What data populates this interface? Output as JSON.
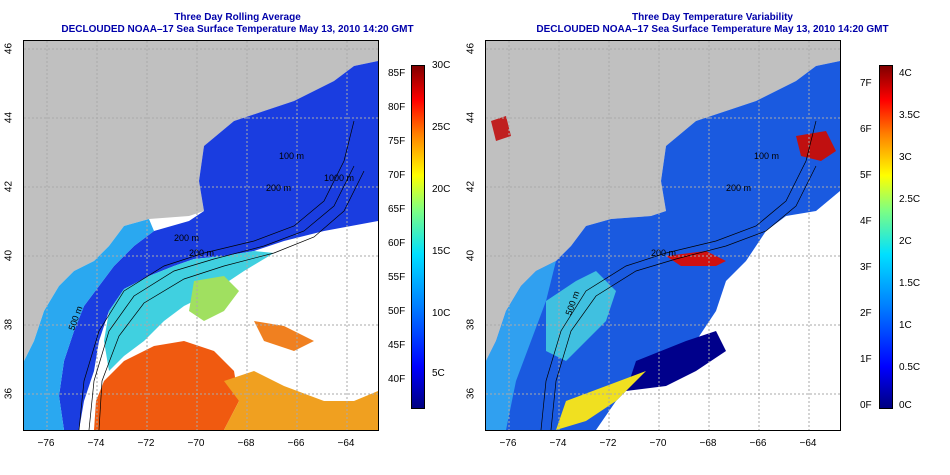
{
  "left_panel": {
    "title": "Three Day Rolling Average",
    "subtitle": "DECLOUDED NOAA–17 Sea Surface Temperature May 13, 2010 14:20 GMT",
    "contour_labels": [
      "100 m",
      "200 m",
      "1000 m",
      "200 m",
      "500 m",
      "200 m"
    ],
    "colorbar_f": [
      "85F",
      "80F",
      "75F",
      "70F",
      "65F",
      "60F",
      "55F",
      "50F",
      "45F",
      "40F"
    ],
    "colorbar_c": [
      "30C",
      "25C",
      "20C",
      "15C",
      "10C",
      "5C"
    ],
    "colors": {
      "cold": "#1030d0",
      "mid": "#30c0f0",
      "warm": "#f05a10",
      "hot": "#ffa020",
      "land": "#c0c0c0"
    }
  },
  "right_panel": {
    "title": "Three Day Temperature Variability",
    "subtitle": "DECLOUDED NOAA–17 Sea Surface Temperature May 13, 2010 14:20 GMT",
    "contour_labels": [
      "100 m",
      "200 m",
      "200 m",
      "500 m"
    ],
    "colorbar_f": [
      "7F",
      "6F",
      "5F",
      "4F",
      "3F",
      "2F",
      "1F",
      "0F"
    ],
    "colorbar_c": [
      "4C",
      "3.5C",
      "3C",
      "2.5C",
      "2C",
      "1.5C",
      "1C",
      "0.5C",
      "0C"
    ]
  },
  "axes": {
    "lat_labels": [
      "46",
      "44",
      "42",
      "40",
      "38",
      "36"
    ],
    "lon_labels": [
      "−76",
      "−74",
      "−72",
      "−70",
      "−68",
      "−66",
      "−64"
    ]
  }
}
